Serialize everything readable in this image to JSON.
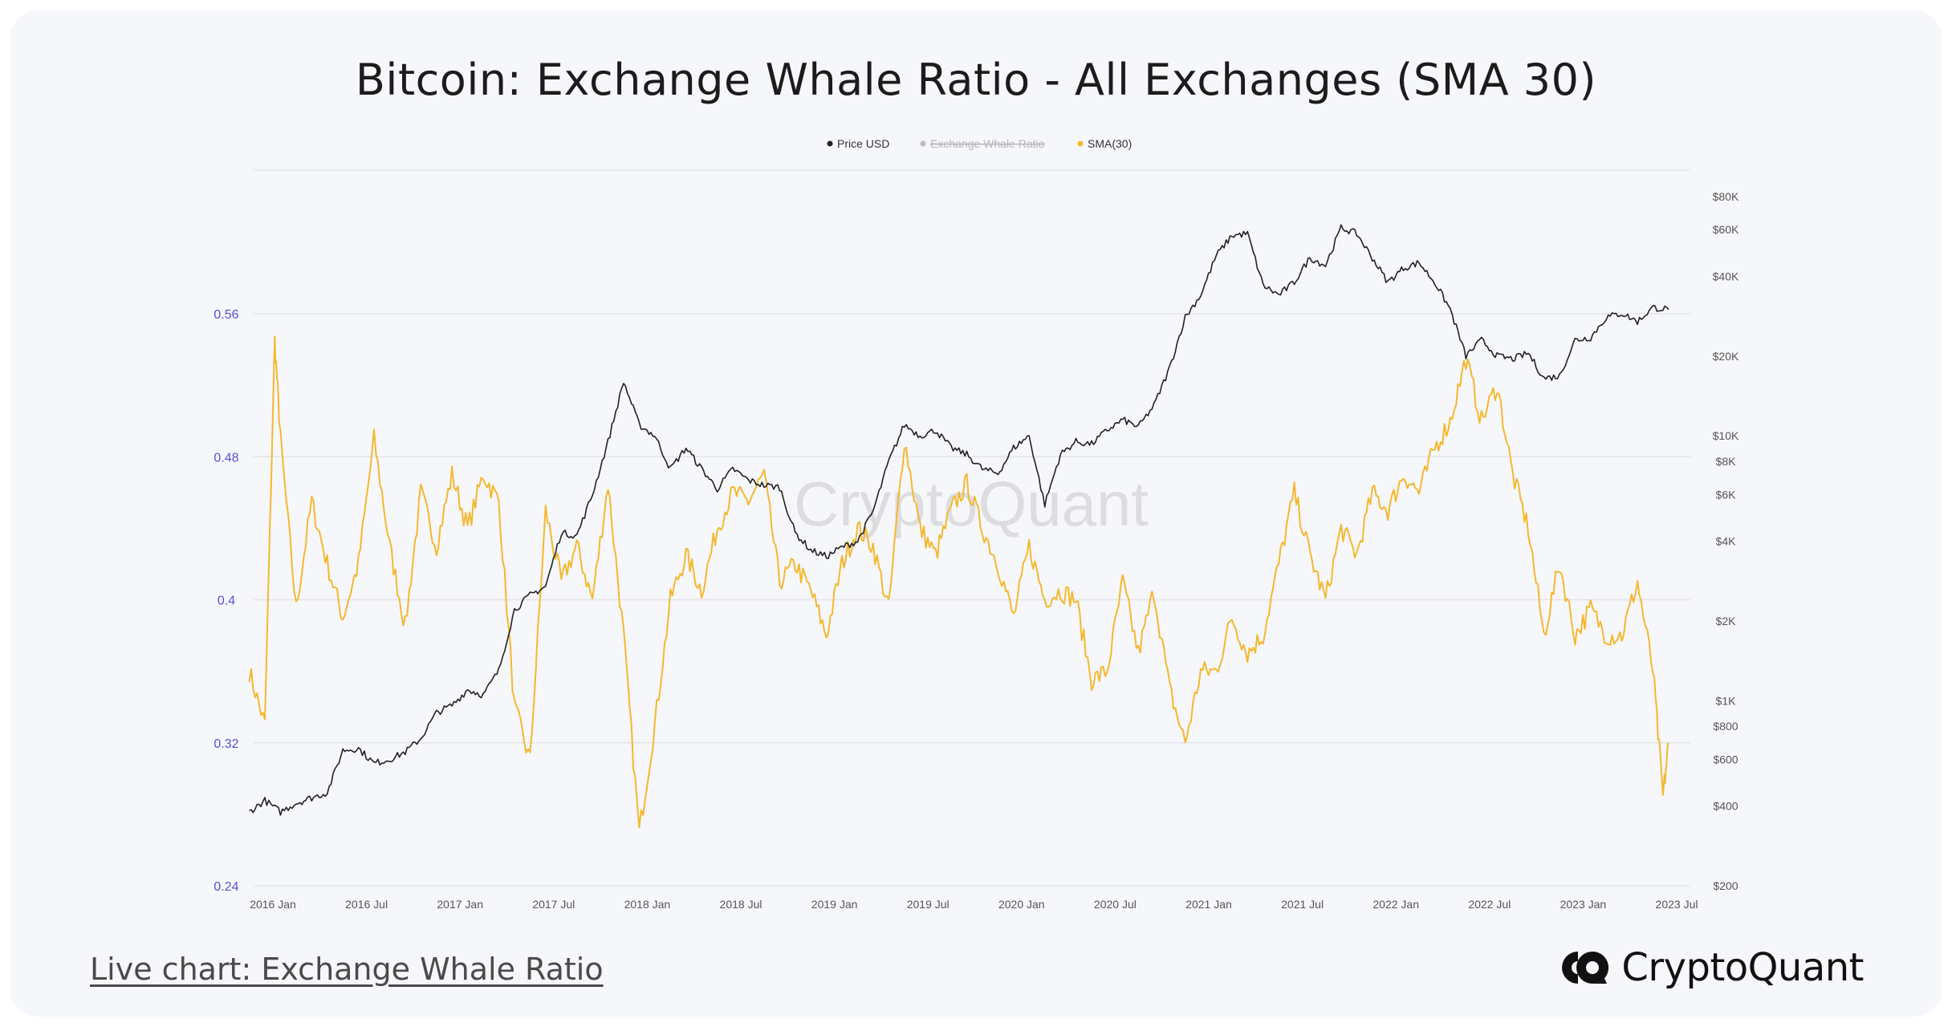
{
  "page": {
    "title": "Bitcoin: Exchange Whale Ratio - All Exchanges (SMA 30)",
    "live_link_text": "Live chart: Exchange Whale Ratio",
    "brand_name": "CryptoQuant",
    "watermark": "CryptoQuant"
  },
  "chart_data": {
    "type": "line",
    "title": "Bitcoin: Exchange Whale Ratio - All Exchanges (SMA 30)",
    "legend": {
      "placement": "top-center",
      "entries": [
        "Price USD",
        "Exchange Whale Ratio",
        "SMA(30)"
      ],
      "hidden": [
        "Exchange Whale Ratio"
      ]
    },
    "grid": true,
    "x_ticks": [
      "2016 Jan",
      "2016 Jul",
      "2017 Jan",
      "2017 Jul",
      "2018 Jan",
      "2018 Jul",
      "2019 Jan",
      "2019 Jul",
      "2020 Jan",
      "2020 Jul",
      "2021 Jan",
      "2021 Jul",
      "2022 Jan",
      "2022 Jul",
      "2023 Jan",
      "2023 Jul"
    ],
    "y_left": {
      "ylim": [
        0.24,
        0.64
      ],
      "ticks": [
        "0.24",
        "0.32",
        "0.4",
        "0.48",
        "0.56"
      ]
    },
    "y_right": {
      "scale": "log",
      "ylim": [
        200,
        80000
      ],
      "ticks": [
        "$200",
        "$400",
        "$600",
        "$800",
        "$1K",
        "$2K",
        "$4K",
        "$6K",
        "$8K",
        "$10K",
        "$20K",
        "$40K",
        "$60K",
        "$80K"
      ]
    },
    "colors": {
      "price": "#222222",
      "sma": "#f5b82e",
      "ewr": "#bbbbbb",
      "left_axis": "#5b4fd6"
    },
    "series": [
      {
        "name": "Price USD",
        "axis": "right",
        "points": [
          [
            "2015-12",
            380
          ],
          [
            "2016-01",
            420
          ],
          [
            "2016-02",
            380
          ],
          [
            "2016-03",
            410
          ],
          [
            "2016-04",
            430
          ],
          [
            "2016-05",
            450
          ],
          [
            "2016-06",
            650
          ],
          [
            "2016-07",
            660
          ],
          [
            "2016-08",
            580
          ],
          [
            "2016-09",
            600
          ],
          [
            "2016-10",
            640
          ],
          [
            "2016-11",
            720
          ],
          [
            "2016-12",
            900
          ],
          [
            "2017-01",
            960
          ],
          [
            "2017-02",
            1100
          ],
          [
            "2017-03",
            1050
          ],
          [
            "2017-04",
            1300
          ],
          [
            "2017-05",
            2200
          ],
          [
            "2017-06",
            2500
          ],
          [
            "2017-07",
            2700
          ],
          [
            "2017-08",
            4300
          ],
          [
            "2017-09",
            4200
          ],
          [
            "2017-10",
            6000
          ],
          [
            "2017-11",
            9500
          ],
          [
            "2017-12",
            16000
          ],
          [
            "2018-01",
            11000
          ],
          [
            "2018-02",
            10000
          ],
          [
            "2018-03",
            7500
          ],
          [
            "2018-04",
            9000
          ],
          [
            "2018-05",
            7500
          ],
          [
            "2018-06",
            6300
          ],
          [
            "2018-07",
            7500
          ],
          [
            "2018-08",
            6800
          ],
          [
            "2018-09",
            6500
          ],
          [
            "2018-10",
            6400
          ],
          [
            "2018-11",
            4300
          ],
          [
            "2018-12",
            3700
          ],
          [
            "2019-01",
            3500
          ],
          [
            "2019-02",
            3800
          ],
          [
            "2019-03",
            4000
          ],
          [
            "2019-04",
            5200
          ],
          [
            "2019-05",
            8000
          ],
          [
            "2019-06",
            11000
          ],
          [
            "2019-07",
            10000
          ],
          [
            "2019-08",
            10500
          ],
          [
            "2019-09",
            9000
          ],
          [
            "2019-10",
            8500
          ],
          [
            "2019-11",
            7500
          ],
          [
            "2019-12",
            7200
          ],
          [
            "2020-01",
            9000
          ],
          [
            "2020-02",
            10000
          ],
          [
            "2020-03",
            5500
          ],
          [
            "2020-04",
            8500
          ],
          [
            "2020-05",
            9500
          ],
          [
            "2020-06",
            9300
          ],
          [
            "2020-07",
            10500
          ],
          [
            "2020-08",
            11500
          ],
          [
            "2020-09",
            10800
          ],
          [
            "2020-10",
            13000
          ],
          [
            "2020-11",
            18000
          ],
          [
            "2020-12",
            28000
          ],
          [
            "2021-01",
            34000
          ],
          [
            "2021-02",
            48000
          ],
          [
            "2021-03",
            57000
          ],
          [
            "2021-04",
            58000
          ],
          [
            "2021-05",
            37000
          ],
          [
            "2021-06",
            34000
          ],
          [
            "2021-07",
            38000
          ],
          [
            "2021-08",
            47000
          ],
          [
            "2021-09",
            44000
          ],
          [
            "2021-10",
            61000
          ],
          [
            "2021-11",
            58000
          ],
          [
            "2021-12",
            47000
          ],
          [
            "2022-01",
            38000
          ],
          [
            "2022-02",
            43000
          ],
          [
            "2022-03",
            45000
          ],
          [
            "2022-04",
            38000
          ],
          [
            "2022-05",
            30000
          ],
          [
            "2022-06",
            20000
          ],
          [
            "2022-07",
            23000
          ],
          [
            "2022-08",
            20000
          ],
          [
            "2022-09",
            19500
          ],
          [
            "2022-10",
            20500
          ],
          [
            "2022-11",
            16500
          ],
          [
            "2022-12",
            16800
          ],
          [
            "2023-01",
            23000
          ],
          [
            "2023-02",
            23500
          ],
          [
            "2023-03",
            28000
          ],
          [
            "2023-04",
            29000
          ],
          [
            "2023-05",
            27000
          ],
          [
            "2023-06",
            30500
          ],
          [
            "2023-07",
            30000
          ]
        ]
      },
      {
        "name": "SMA(30)",
        "axis": "left",
        "points": [
          [
            "2015-12",
            0.36
          ],
          [
            "2016-01",
            0.33
          ],
          [
            "2016-01-20",
            0.545
          ],
          [
            "2016-02",
            0.49
          ],
          [
            "2016-03",
            0.395
          ],
          [
            "2016-04",
            0.455
          ],
          [
            "2016-05",
            0.42
          ],
          [
            "2016-06",
            0.39
          ],
          [
            "2016-07",
            0.42
          ],
          [
            "2016-08",
            0.49
          ],
          [
            "2016-09",
            0.43
          ],
          [
            "2016-10",
            0.385
          ],
          [
            "2016-11",
            0.46
          ],
          [
            "2016-12",
            0.43
          ],
          [
            "2017-01",
            0.47
          ],
          [
            "2017-02",
            0.44
          ],
          [
            "2017-03",
            0.47
          ],
          [
            "2017-04",
            0.455
          ],
          [
            "2017-05",
            0.34
          ],
          [
            "2017-06",
            0.31
          ],
          [
            "2017-07",
            0.45
          ],
          [
            "2017-08",
            0.41
          ],
          [
            "2017-09",
            0.43
          ],
          [
            "2017-10",
            0.4
          ],
          [
            "2017-11",
            0.465
          ],
          [
            "2017-12",
            0.38
          ],
          [
            "2018-01",
            0.27
          ],
          [
            "2018-02",
            0.33
          ],
          [
            "2018-03",
            0.4
          ],
          [
            "2018-04",
            0.425
          ],
          [
            "2018-05",
            0.405
          ],
          [
            "2018-06",
            0.44
          ],
          [
            "2018-07",
            0.46
          ],
          [
            "2018-08",
            0.455
          ],
          [
            "2018-09",
            0.47
          ],
          [
            "2018-10",
            0.41
          ],
          [
            "2018-11",
            0.42
          ],
          [
            "2018-12",
            0.405
          ],
          [
            "2019-01",
            0.38
          ],
          [
            "2019-02",
            0.42
          ],
          [
            "2019-03",
            0.44
          ],
          [
            "2019-04",
            0.43
          ],
          [
            "2019-05",
            0.395
          ],
          [
            "2019-06",
            0.49
          ],
          [
            "2019-07",
            0.44
          ],
          [
            "2019-08",
            0.425
          ],
          [
            "2019-09",
            0.45
          ],
          [
            "2019-10",
            0.465
          ],
          [
            "2019-11",
            0.44
          ],
          [
            "2019-12",
            0.42
          ],
          [
            "2020-01",
            0.39
          ],
          [
            "2020-02",
            0.43
          ],
          [
            "2020-03",
            0.4
          ],
          [
            "2020-04",
            0.405
          ],
          [
            "2020-05",
            0.4
          ],
          [
            "2020-06",
            0.355
          ],
          [
            "2020-07",
            0.36
          ],
          [
            "2020-08",
            0.41
          ],
          [
            "2020-09",
            0.37
          ],
          [
            "2020-10",
            0.405
          ],
          [
            "2020-11",
            0.35
          ],
          [
            "2020-12",
            0.32
          ],
          [
            "2021-01",
            0.36
          ],
          [
            "2021-02",
            0.36
          ],
          [
            "2021-03",
            0.39
          ],
          [
            "2021-04",
            0.37
          ],
          [
            "2021-05",
            0.38
          ],
          [
            "2021-06",
            0.42
          ],
          [
            "2021-07",
            0.46
          ],
          [
            "2021-08",
            0.425
          ],
          [
            "2021-09",
            0.4
          ],
          [
            "2021-10",
            0.44
          ],
          [
            "2021-11",
            0.425
          ],
          [
            "2021-12",
            0.46
          ],
          [
            "2022-01",
            0.45
          ],
          [
            "2022-02",
            0.47
          ],
          [
            "2022-03",
            0.46
          ],
          [
            "2022-04",
            0.485
          ],
          [
            "2022-05",
            0.5
          ],
          [
            "2022-06",
            0.535
          ],
          [
            "2022-07",
            0.5
          ],
          [
            "2022-08",
            0.52
          ],
          [
            "2022-09",
            0.47
          ],
          [
            "2022-10",
            0.44
          ],
          [
            "2022-11",
            0.38
          ],
          [
            "2022-12",
            0.42
          ],
          [
            "2023-01",
            0.38
          ],
          [
            "2023-02",
            0.395
          ],
          [
            "2023-03",
            0.38
          ],
          [
            "2023-04",
            0.38
          ],
          [
            "2023-05",
            0.41
          ],
          [
            "2023-06",
            0.36
          ],
          [
            "2023-06-20",
            0.29
          ],
          [
            "2023-07",
            0.32
          ]
        ]
      }
    ]
  }
}
